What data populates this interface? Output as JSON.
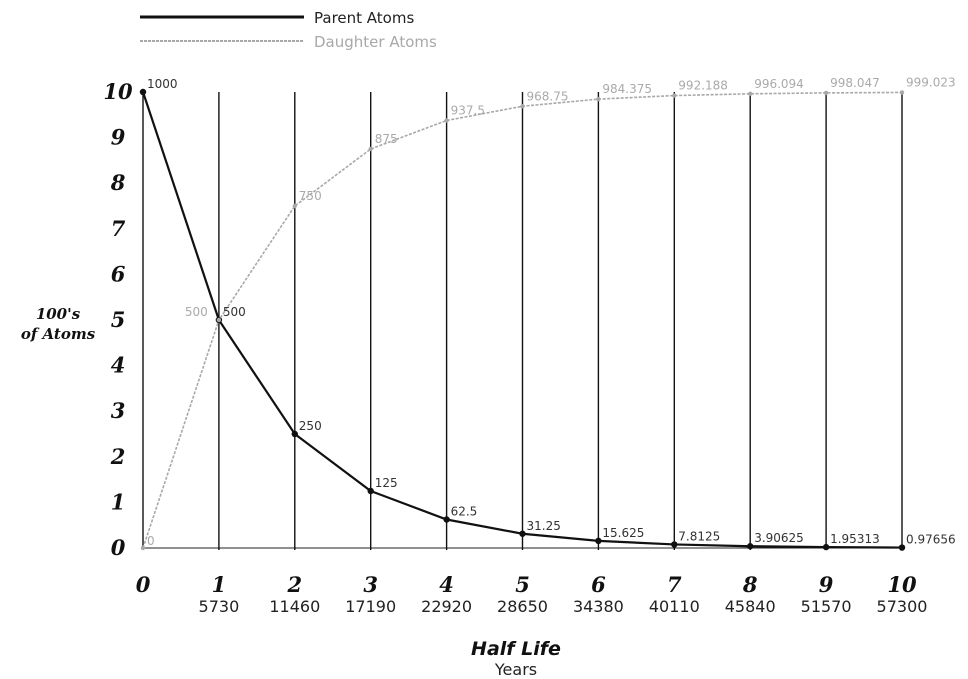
{
  "chart_data": {
    "type": "line",
    "title": "",
    "xlabel": "Half Life",
    "xlabel_sub": "Years",
    "ylabel_line1": "100's",
    "ylabel_line2": "of Atoms",
    "x": [
      0,
      1,
      2,
      3,
      4,
      5,
      6,
      7,
      8,
      9,
      10
    ],
    "x_sub_labels": [
      "",
      "5730",
      "11460",
      "17190",
      "22920",
      "28650",
      "34380",
      "40110",
      "45840",
      "51570",
      "57300"
    ],
    "xlim": [
      0,
      10
    ],
    "ylim": [
      0,
      10
    ],
    "yticks": [
      0,
      1,
      2,
      3,
      4,
      5,
      6,
      7,
      8,
      9,
      10
    ],
    "legend_position": "top-left",
    "series": [
      {
        "name": "Parent Atoms",
        "color": "#111111",
        "values": [
          10,
          5,
          2.5,
          1.25,
          0.625,
          0.3125,
          0.15625,
          0.078125,
          0.0390625,
          0.01953125,
          0.009765625
        ],
        "data_labels": [
          "1000",
          "500",
          "250",
          "125",
          "62.5",
          "31.25",
          "15.625",
          "7.8125",
          "3.90625",
          "1.95313",
          "0.97656"
        ]
      },
      {
        "name": "Daughter Atoms",
        "color": "#a8a8a8",
        "values": [
          0,
          5,
          7.5,
          8.75,
          9.375,
          9.6875,
          9.84375,
          9.921875,
          9.9609375,
          9.98046875,
          9.990234375
        ],
        "data_labels": [
          "0",
          "500",
          "750",
          "875",
          "937.5",
          "968.75",
          "984.375",
          "992.188",
          "996.094",
          "998.047",
          "999.023"
        ]
      }
    ]
  }
}
